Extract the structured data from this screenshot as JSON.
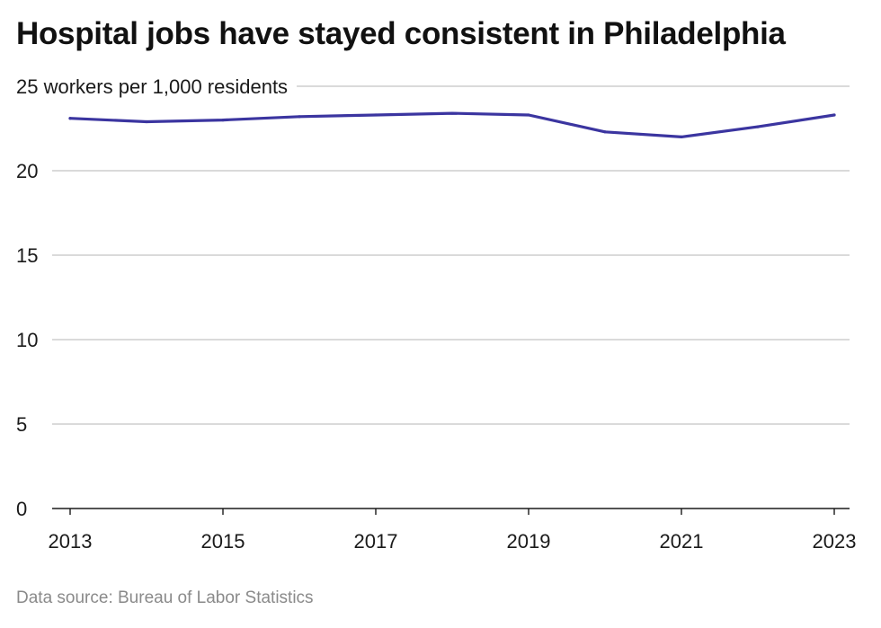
{
  "chart_data": {
    "type": "line",
    "title": "Hospital jobs have stayed consistent in Philadelphia",
    "unit_label": "workers per 1,000 residents",
    "x": [
      2013,
      2014,
      2015,
      2016,
      2017,
      2018,
      2019,
      2020,
      2021,
      2022,
      2023
    ],
    "x_tick_labels": [
      "2013",
      "2015",
      "2017",
      "2019",
      "2021",
      "2023"
    ],
    "y_tick_labels": [
      "0",
      "5",
      "10",
      "15",
      "20",
      "25"
    ],
    "series": [
      {
        "values": [
          23.1,
          22.9,
          23.0,
          23.2,
          23.3,
          23.4,
          23.3,
          22.3,
          22.0,
          22.6,
          23.3
        ],
        "color": "#3b35a0"
      }
    ],
    "xlim": [
      2013,
      2023
    ],
    "ylim": [
      0,
      25
    ],
    "grid": true,
    "source": "Data source: Bureau of Labor Statistics"
  }
}
